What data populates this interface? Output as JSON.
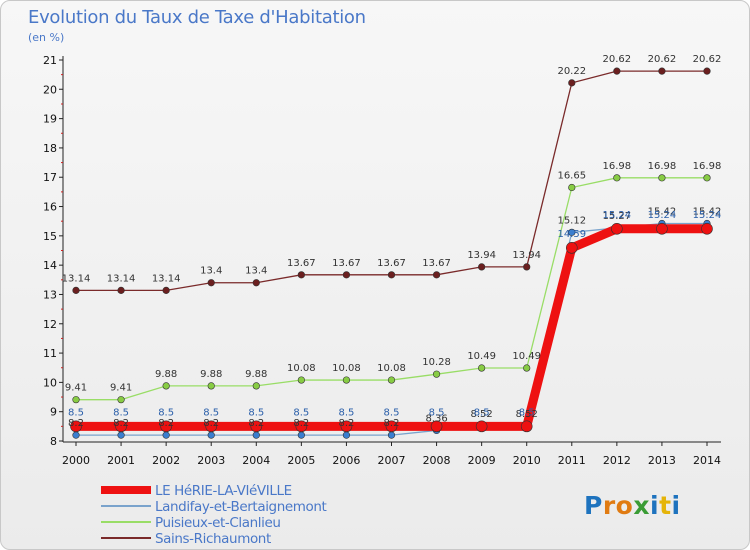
{
  "title": "Evolution du Taux de Taxe d'Habitation",
  "subtitle": "(en %)",
  "logo": {
    "letters": [
      "P",
      "r",
      "o",
      "x",
      "i",
      "t",
      "i"
    ],
    "colors": [
      "#1e73be",
      "#e07b12",
      "#e07b12",
      "#3a9c35",
      "#1e73be",
      "#e5b409",
      "#1e73be"
    ]
  },
  "chart_data": {
    "type": "line",
    "x": [
      "2000",
      "2001",
      "2002",
      "2003",
      "2004",
      "2005",
      "2006",
      "2007",
      "2008",
      "2009",
      "2010",
      "2011",
      "2012",
      "2013",
      "2014"
    ],
    "ylim": [
      8,
      21
    ],
    "yticks": [
      8,
      9,
      10,
      11,
      12,
      13,
      14,
      15,
      16,
      17,
      18,
      19,
      20,
      21
    ],
    "grid": false,
    "legend_position": "bottom-left",
    "series": [
      {
        "name": "LE HéRIE-LA-VIéVILLE",
        "color": "#ee1111",
        "marker": "#ee1111",
        "emphasis": true,
        "values": [
          8.5,
          8.5,
          8.5,
          8.5,
          8.5,
          8.5,
          8.5,
          8.5,
          8.5,
          8.5,
          8.5,
          14.59,
          15.24,
          15.24,
          15.24
        ],
        "labels": [
          "8.5",
          "8.5",
          "8.5",
          "8.5",
          "8.5",
          "8.5",
          "8.5",
          "8.5",
          "8.5",
          "8.5",
          "8.5",
          "14.59",
          "15.24",
          "15.24",
          "15.24"
        ]
      },
      {
        "name": "Landifay-et-Bertaignemont",
        "color": "#7aa3cc",
        "marker": "#3a7ecf",
        "values": [
          8.2,
          8.2,
          8.2,
          8.2,
          8.2,
          8.2,
          8.2,
          8.2,
          8.36,
          8.52,
          8.52,
          15.12,
          15.27,
          15.42,
          15.42
        ],
        "labels": [
          "8.2",
          "8.2",
          "8.2",
          "8.2",
          "8.2",
          "8.2",
          "8.2",
          "8.2",
          "8.36",
          "8.52",
          "8.52",
          "15.12",
          "15.27",
          "15.42",
          "15.42"
        ]
      },
      {
        "name": "Puisieux-et-Clanlieu",
        "color": "#99dd66",
        "marker": "#88cc44",
        "values": [
          9.41,
          9.41,
          9.88,
          9.88,
          9.88,
          10.08,
          10.08,
          10.08,
          10.28,
          10.49,
          10.49,
          16.65,
          16.98,
          16.98,
          16.98
        ],
        "labels": [
          "9.41",
          "9.41",
          "9.88",
          "9.88",
          "9.88",
          "10.08",
          "10.08",
          "10.08",
          "10.28",
          "10.49",
          "10.49",
          "16.65",
          "16.98",
          "16.98",
          "16.98"
        ]
      },
      {
        "name": "Sains-Richaumont",
        "color": "#7a2a2a",
        "marker": "#6b1f1f",
        "values": [
          13.14,
          13.14,
          13.14,
          13.4,
          13.4,
          13.67,
          13.67,
          13.67,
          13.67,
          13.94,
          13.94,
          20.22,
          20.62,
          20.62,
          20.62
        ],
        "labels": [
          "13.14",
          "13.14",
          "13.14",
          "13.4",
          "13.4",
          "13.67",
          "13.67",
          "13.67",
          "13.67",
          "13.94",
          "13.94",
          "20.22",
          "20.62",
          "20.62",
          "20.62"
        ]
      }
    ]
  }
}
